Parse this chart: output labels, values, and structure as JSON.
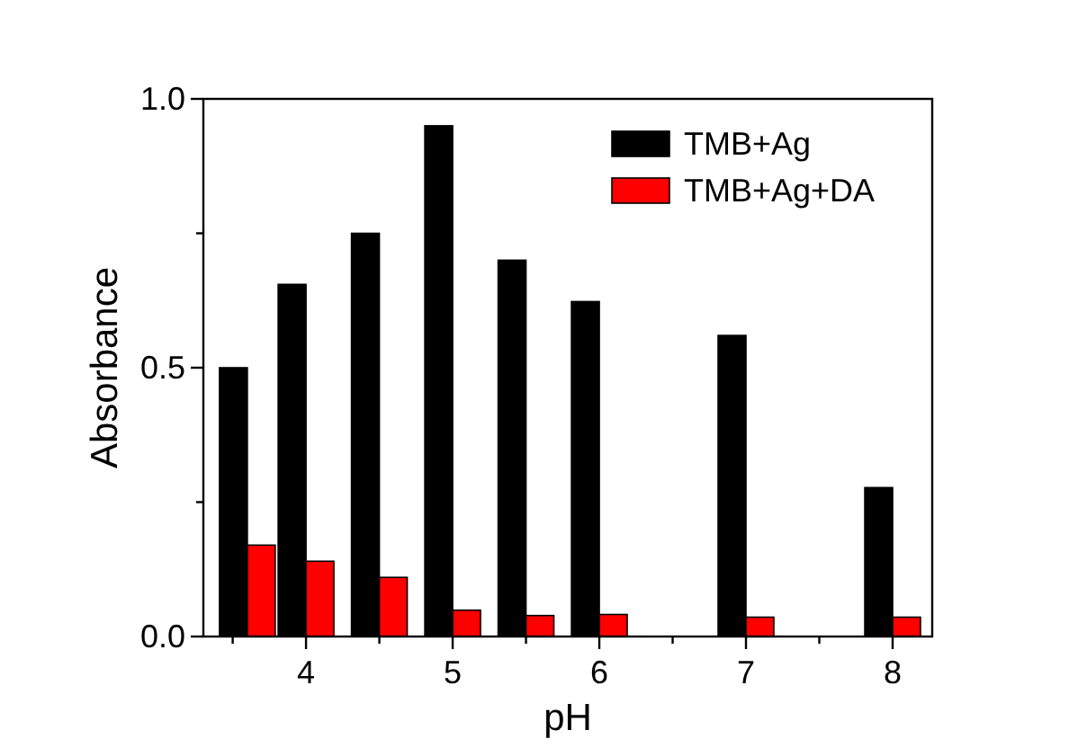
{
  "chart_data": {
    "type": "bar",
    "xlabel": "pH",
    "ylabel": "Absorbance",
    "x": [
      3.6,
      4,
      4.5,
      5,
      5.5,
      6,
      7,
      8
    ],
    "series": [
      {
        "name": "TMB+Ag",
        "color": "#000000",
        "values": [
          0.5,
          0.655,
          0.75,
          0.95,
          0.7,
          0.623,
          0.56,
          0.277
        ]
      },
      {
        "name": "TMB+Ag+DA",
        "color": "#ff0000",
        "values": [
          0.17,
          0.14,
          0.11,
          0.049,
          0.039,
          0.041,
          0.036,
          0.036
        ]
      }
    ],
    "xlim": [
      3.3,
      8.27
    ],
    "xticks": [
      {
        "value": 3.5,
        "label": null
      },
      4,
      {
        "value": 4.5,
        "label": null
      },
      5,
      {
        "value": 5.5,
        "label": null
      },
      6,
      {
        "value": 6.5,
        "label": null
      },
      7,
      {
        "value": 7.5,
        "label": null
      },
      8
    ],
    "ylim": [
      0,
      1
    ],
    "yticks": [
      {
        "value": 0,
        "label": "0.0"
      },
      {
        "value": 0.25,
        "label": null
      },
      {
        "value": 0.5,
        "label": "0.5"
      },
      {
        "value": 0.75,
        "label": null
      },
      {
        "value": 1,
        "label": "1.0"
      }
    ],
    "grid": false,
    "legend": "top right"
  }
}
